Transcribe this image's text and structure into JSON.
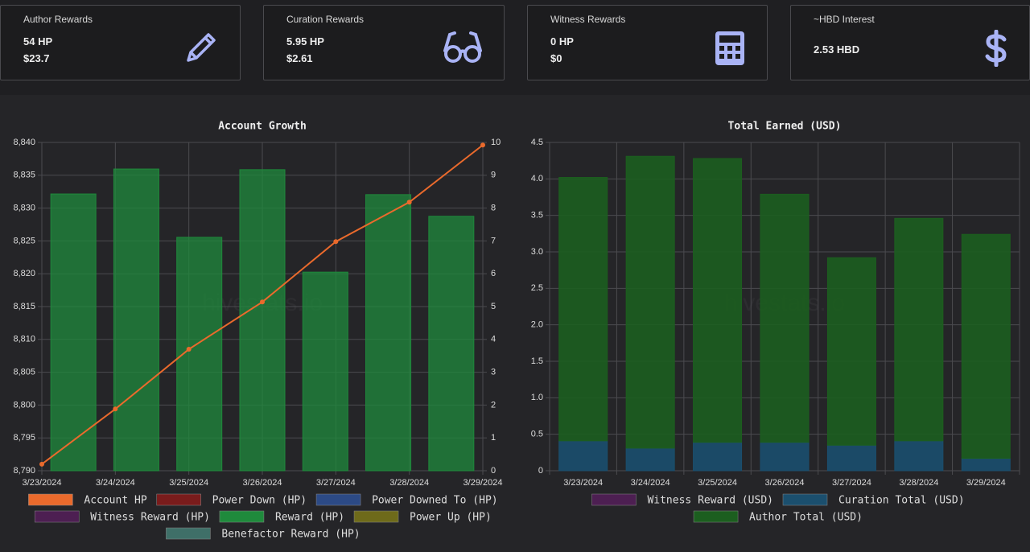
{
  "cards": [
    {
      "title": "Author Rewards",
      "lines": [
        "54 HP",
        "$23.7"
      ]
    },
    {
      "title": "Curation Rewards",
      "lines": [
        "5.95 HP",
        "$2.61"
      ]
    },
    {
      "title": "Witness Rewards",
      "lines": [
        "0 HP",
        "$0"
      ]
    },
    {
      "title": "~HBD Interest",
      "lines": [
        "2.53 HBD"
      ]
    }
  ],
  "watermark": "hivestats.io",
  "chart_data": [
    {
      "type": "combo",
      "title": "Account Growth",
      "categories": [
        "3/23/2024",
        "3/24/2024",
        "3/25/2024",
        "3/26/2024",
        "3/27/2024",
        "3/28/2024",
        "3/29/2024"
      ],
      "ylim": [
        8790,
        8840
      ],
      "yticks": [
        {
          "value": 8790,
          "label": "8,790"
        },
        {
          "value": 8795,
          "label": "8,795"
        },
        {
          "value": 8800,
          "label": "8,800"
        },
        {
          "value": 8805,
          "label": "8,805"
        },
        {
          "value": 8810,
          "label": "8,810"
        },
        {
          "value": 8815,
          "label": "8,815"
        },
        {
          "value": 8820,
          "label": "8,820"
        },
        {
          "value": 8825,
          "label": "8,825"
        },
        {
          "value": 8830,
          "label": "8,830"
        },
        {
          "value": 8835,
          "label": "8,835"
        },
        {
          "value": 8840,
          "label": "8,840"
        }
      ],
      "y2lim": [
        0,
        10
      ],
      "y2ticks": [
        0,
        1,
        2,
        3,
        4,
        5,
        6,
        7,
        8,
        9,
        10
      ],
      "grid": true,
      "series": [
        {
          "name": "Account HP",
          "type": "line",
          "color": "#ea6a2c",
          "values": [
            8791.0,
            8799.4,
            8808.5,
            8815.7,
            8824.9,
            8830.9,
            8839.6
          ]
        },
        {
          "name": "Power Down (HP)",
          "type": "bar",
          "color": "#7a1c1c",
          "values": [
            null,
            null,
            null,
            null,
            null,
            null,
            null
          ]
        },
        {
          "name": "Power Downed To (HP)",
          "type": "bar",
          "color": "#2c4a86",
          "values": [
            null,
            null,
            null,
            null,
            null,
            null,
            null
          ]
        },
        {
          "name": "Witness Reward (HP)",
          "type": "bar",
          "color": "#4d1f52",
          "values": [
            null,
            null,
            null,
            null,
            null,
            null,
            null
          ]
        },
        {
          "name": "Reward (HP)",
          "type": "bar",
          "axis": "y2",
          "color": "#1f8a3c",
          "values": [
            8.43,
            9.19,
            7.11,
            9.17,
            6.05,
            8.41,
            7.75
          ]
        },
        {
          "name": "Power Up (HP)",
          "type": "bar",
          "color": "#6e6a1a",
          "values": [
            null,
            null,
            null,
            null,
            null,
            null,
            null
          ]
        },
        {
          "name": "Benefactor Reward (HP)",
          "type": "bar",
          "color": "#3f6f68",
          "values": [
            null,
            null,
            null,
            null,
            null,
            null,
            null
          ]
        }
      ]
    },
    {
      "type": "stacked_bar",
      "title": "Total Earned (USD)",
      "categories": [
        "3/23/2024",
        "3/24/2024",
        "3/25/2024",
        "3/26/2024",
        "3/27/2024",
        "3/28/2024",
        "3/29/2024"
      ],
      "ylim": [
        0,
        4.5
      ],
      "yticks": [
        0,
        0.5,
        {
          "value": 1,
          "label": "1.0"
        },
        1.5,
        {
          "value": 2,
          "label": "2.0"
        },
        2.5,
        {
          "value": 3,
          "label": "3.0"
        },
        3.5,
        {
          "value": 4,
          "label": "4.0"
        },
        4.5
      ],
      "grid": true,
      "series": [
        {
          "name": "Witness Reward (USD)",
          "color": "#4d1f52",
          "values": [
            null,
            null,
            null,
            null,
            null,
            null,
            null
          ]
        },
        {
          "name": "Curation Total (USD)",
          "color": "#1b4f6e",
          "values": [
            0.41,
            0.31,
            0.39,
            0.39,
            0.35,
            0.41,
            0.17
          ]
        },
        {
          "name": "Author Total (USD)",
          "color": "#1c5e1f",
          "values": [
            3.61,
            4.0,
            3.89,
            3.4,
            2.57,
            3.05,
            3.07
          ]
        }
      ]
    }
  ]
}
